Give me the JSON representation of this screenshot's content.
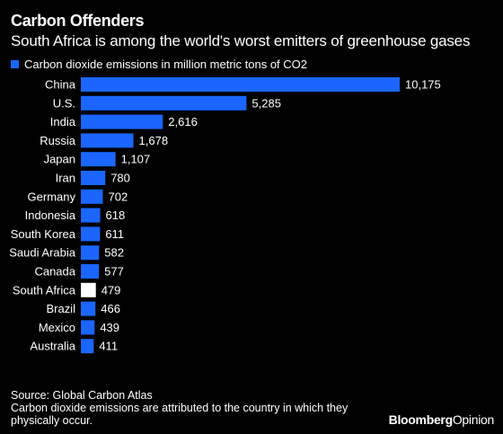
{
  "title": "Carbon Offenders",
  "subtitle": "South Africa is among the world's worst emitters of greenhouse gases",
  "legend": {
    "label": "Carbon dioxide emissions in million metric tons of CO2",
    "color": "#1a66ff"
  },
  "footer": {
    "source": "Source: Global Carbon Atlas",
    "note": "Carbon dioxide emissions are attributed to the country in which they physically occur."
  },
  "brand": {
    "part1": "Bloomberg",
    "part2": "Opinion"
  },
  "colors": {
    "bar": "#1a66ff",
    "highlight": "#ffffff",
    "background": "#000000"
  },
  "chart_data": {
    "type": "bar",
    "orientation": "horizontal",
    "categories": [
      "China",
      "U.S.",
      "India",
      "Russia",
      "Japan",
      "Iran",
      "Germany",
      "Indonesia",
      "South Korea",
      "Saudi Arabia",
      "Canada",
      "South Africa",
      "Brazil",
      "Mexico",
      "Australia"
    ],
    "values": [
      10175,
      5285,
      2616,
      1678,
      1107,
      780,
      702,
      618,
      611,
      582,
      577,
      479,
      466,
      439,
      411
    ],
    "labels": [
      "10,175",
      "5,285",
      "2,616",
      "1,678",
      "1,107",
      "780",
      "702",
      "618",
      "611",
      "582",
      "577",
      "479",
      "466",
      "439",
      "411"
    ],
    "highlight": "South Africa",
    "series": [
      {
        "name": "Carbon dioxide emissions in million metric tons of CO2"
      }
    ]
  }
}
